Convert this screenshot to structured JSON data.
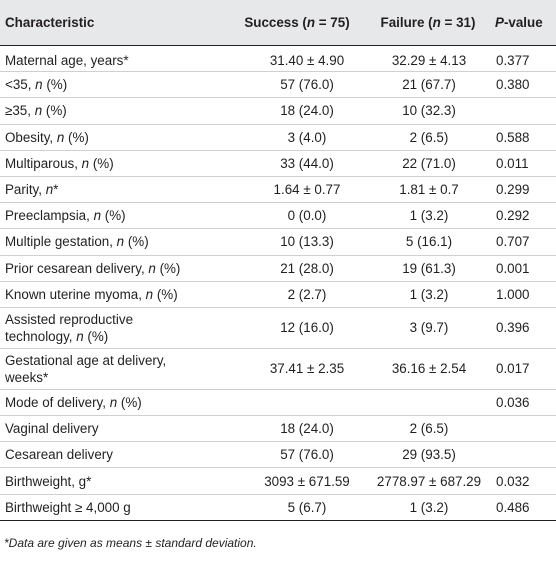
{
  "table": {
    "headers": {
      "characteristic": "Characteristic",
      "success_pre": "Success (",
      "success_n": "n",
      "success_post": " = 75)",
      "failure_pre": "Failure (",
      "failure_n": "n",
      "failure_post": " = 31)",
      "pvalue_p": "P",
      "pvalue_rest": "-value"
    },
    "rows": [
      {
        "pre": "Maternal age, years*",
        "ital": "",
        "post": "",
        "success": "31.40 ± 4.90",
        "failure": "32.29 ± 4.13",
        "p": "0.377"
      },
      {
        "pre": "<35, ",
        "ital": "n",
        "post": " (%)",
        "success": "57 (76.0)",
        "failure": "21 (67.7)",
        "p": "0.380"
      },
      {
        "pre": "≥35, ",
        "ital": "n",
        "post": " (%)",
        "success": "18 (24.0)",
        "failure": "10 (32.3)",
        "p": ""
      },
      {
        "pre": "Obesity, ",
        "ital": "n",
        "post": " (%)",
        "success": "3 (4.0)",
        "failure": "2 (6.5)",
        "p": "0.588"
      },
      {
        "pre": "Multiparous, ",
        "ital": "n",
        "post": " (%)",
        "success": "33 (44.0)",
        "failure": "22 (71.0)",
        "p": "0.011"
      },
      {
        "pre": "Parity, ",
        "ital": "n",
        "post": "*",
        "success": "1.64 ± 0.77",
        "failure": "1.81 ± 0.7",
        "p": "0.299"
      },
      {
        "pre": "Preeclampsia, ",
        "ital": "n",
        "post": " (%)",
        "success": "0 (0.0)",
        "failure": "1 (3.2)",
        "p": "0.292"
      },
      {
        "pre": "Multiple gestation, ",
        "ital": "n",
        "post": " (%)",
        "success": "10 (13.3)",
        "failure": "5 (16.1)",
        "p": "0.707"
      },
      {
        "pre": "Prior cesarean delivery, ",
        "ital": "n",
        "post": " (%)",
        "success": "21 (28.0)",
        "failure": "19 (61.3)",
        "p": "0.001"
      },
      {
        "pre": "Known uterine myoma, ",
        "ital": "n",
        "post": " (%)",
        "success": "2 (2.7)",
        "failure": "1 (3.2)",
        "p": "1.000"
      },
      {
        "line1": "Assisted reproductive",
        "pre": "technology, ",
        "ital": "n",
        "post": " (%)",
        "success": "12 (16.0)",
        "failure": "3 (9.7)",
        "p": "0.396"
      },
      {
        "line1": "Gestational age at delivery,",
        "pre": "weeks*",
        "ital": "",
        "post": "",
        "success": "37.41 ± 2.35",
        "failure": "36.16 ± 2.54",
        "p": "0.017"
      },
      {
        "pre": "Mode of delivery, ",
        "ital": "n",
        "post": " (%)",
        "success": "",
        "failure": "",
        "p": "0.036"
      },
      {
        "pre": "Vaginal delivery",
        "ital": "",
        "post": "",
        "success": "18 (24.0)",
        "failure": "2 (6.5)",
        "p": ""
      },
      {
        "pre": "Cesarean delivery",
        "ital": "",
        "post": "",
        "success": "57 (76.0)",
        "failure": "29 (93.5)",
        "p": ""
      },
      {
        "pre": "Birthweight, g*",
        "ital": "",
        "post": "",
        "success": "3093 ± 671.59",
        "failure": "2778.97 ± 687.29",
        "p": "0.032"
      },
      {
        "pre": "Birthweight ≥ 4,000 g",
        "ital": "",
        "post": "",
        "success": "5 (6.7)",
        "failure": "1 (3.2)",
        "p": "0.486"
      }
    ],
    "footnote": "*Data are given as means ± standard deviation."
  }
}
